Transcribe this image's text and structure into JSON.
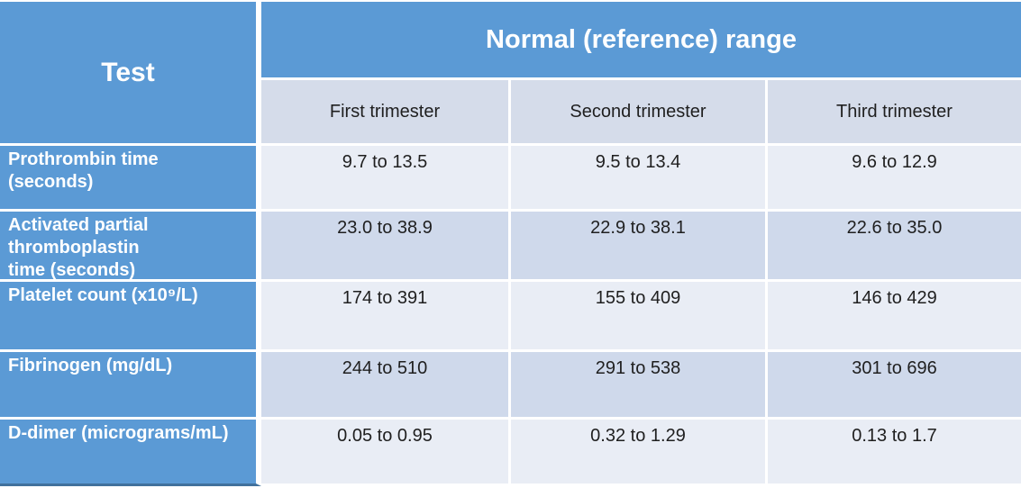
{
  "colors": {
    "header_blue": "#5b9ad5",
    "subheader_bg": "#d5dcea",
    "row_light_bg": "#e9edf5",
    "row_band_bg": "#cfd9eb",
    "separator": "#ffffff",
    "bottom_edge_blue": "#41719c",
    "header_text": "#ffffff",
    "body_text": "#1f1f1f"
  },
  "table": {
    "corner_header": "Test",
    "group_header": "Normal (reference) range",
    "column_headers": [
      "First trimester",
      "Second trimester",
      "Third trimester"
    ],
    "rows": [
      {
        "label": "Prothrombin time\n(seconds)",
        "values": [
          "9.7 to 13.5",
          "9.5 to 13.4",
          "9.6 to 12.9"
        ]
      },
      {
        "label": "Activated partial\nthromboplastin\ntime (seconds)",
        "values": [
          "23.0 to 38.9",
          "22.9 to 38.1",
          "22.6 to 35.0"
        ]
      },
      {
        "label": "Platelet count (x10⁹/L)",
        "values": [
          "174 to 391",
          "155 to 409",
          "146 to 429"
        ]
      },
      {
        "label": "Fibrinogen (mg/dL)",
        "values": [
          "244 to 510",
          "291 to 538",
          "301 to 696"
        ]
      },
      {
        "label": "D-dimer (micrograms/mL)",
        "values": [
          "0.05 to 0.95",
          "0.32 to 1.29",
          "0.13 to 1.7"
        ]
      }
    ]
  },
  "chart_data": {
    "type": "table",
    "title": "Normal (reference) range",
    "columns": [
      "Test",
      "First trimester",
      "Second trimester",
      "Third trimester"
    ],
    "rows": [
      [
        "Prothrombin time (seconds)",
        "9.7 to 13.5",
        "9.5 to 13.4",
        "9.6 to 12.9"
      ],
      [
        "Activated partial thromboplastin time (seconds)",
        "23.0 to 38.9",
        "22.9 to 38.1",
        "22.6 to 35.0"
      ],
      [
        "Platelet count (x10⁹/L)",
        "174 to 391",
        "155 to 409",
        "146 to 429"
      ],
      [
        "Fibrinogen (mg/dL)",
        "244 to 510",
        "291 to 538",
        "301 to 696"
      ],
      [
        "D-dimer (micrograms/mL)",
        "0.05 to 0.95",
        "0.32 to 1.29",
        "0.13 to 1.7"
      ]
    ]
  }
}
